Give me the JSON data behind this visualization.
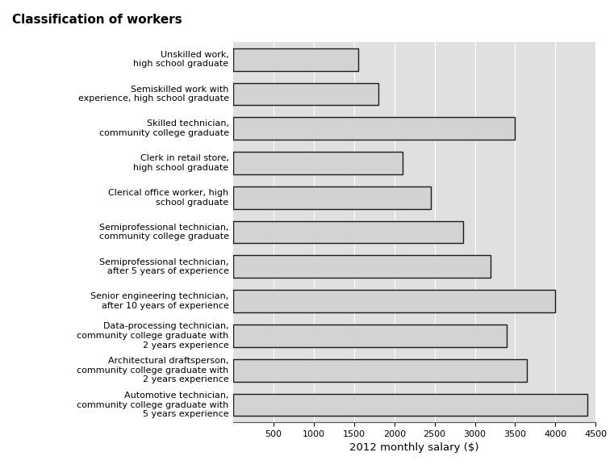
{
  "title": "Classification of workers",
  "xlabel": "2012 monthly salary ($)",
  "categories": [
    "Unskilled work,\nhigh school graduate",
    "Semiskilled work with\nexperience, high school graduate",
    "Skilled technician,\ncommunity college graduate",
    "Clerk in retail store,\nhigh school graduate",
    "Clerical office worker, high\nschool graduate",
    "Semiprofessional technician,\ncommunity college graduate",
    "Semiprofessional technician,\nafter 5 years of experience",
    "Senior engineering technician,\nafter 10 years of experience",
    "Data-processing technician,\ncommunity college graduate with\n2 years experience",
    "Architectural draftsperson,\ncommunity college graduate with\n2 years experience",
    "Automotive technician,\ncommunity college graduate with\n5 years experience"
  ],
  "values": [
    1550,
    1800,
    3500,
    2100,
    2450,
    2850,
    3200,
    4000,
    3400,
    3650,
    4400
  ],
  "bar_color": "#d3d3d3",
  "bar_edgecolor": "#1a1a1a",
  "background_color": "#e0e0e0",
  "xlim": [
    0,
    4500
  ],
  "xticks": [
    500,
    1000,
    1500,
    2000,
    2500,
    3000,
    3500,
    4000,
    4500
  ],
  "title_fontsize": 11,
  "label_fontsize": 8,
  "xlabel_fontsize": 9.5,
  "bar_linewidth": 1.0
}
